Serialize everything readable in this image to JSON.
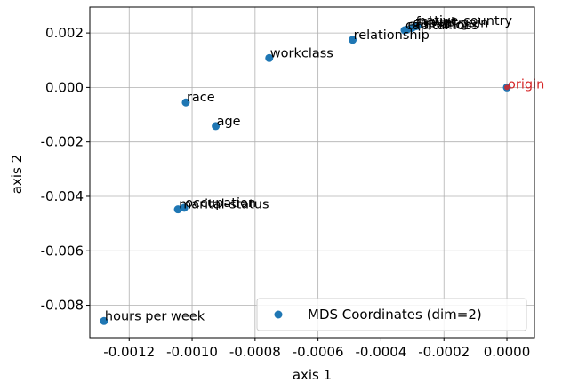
{
  "chart_data": {
    "type": "scatter",
    "xlabel": "axis 1",
    "ylabel": "axis 2",
    "xlim": [
      -0.001325,
      8.75e-05
    ],
    "ylim": [
      -0.00919,
      0.00295
    ],
    "xticks": [
      -0.0012,
      -0.001,
      -0.0008,
      -0.0006,
      -0.0004,
      -0.0002,
      0.0
    ],
    "xtick_labels": [
      "-0.0012",
      "-0.0010",
      "-0.0008",
      "-0.0006",
      "-0.0004",
      "-0.0002",
      "0.0000"
    ],
    "yticks": [
      -0.008,
      -0.006,
      -0.004,
      -0.002,
      0.0,
      0.002
    ],
    "ytick_labels": [
      "-0.008",
      "-0.006",
      "-0.004",
      "-0.002",
      "0.000",
      "0.002"
    ],
    "grid": true,
    "legend": {
      "position": "bottom-right",
      "label": "MDS Coordinates (dim=2)"
    },
    "colors": {
      "marker": "#1f77b4",
      "origin": "#d62728",
      "grid": "#b0b0b0"
    },
    "points": [
      {
        "label": "native-country",
        "x": -0.000285,
        "y": 0.00226
      },
      {
        "label": "capital-gain",
        "x": -0.000302,
        "y": 0.00218
      },
      {
        "label": "fnlwgt",
        "x": -0.000292,
        "y": 0.00224
      },
      {
        "label": "education",
        "x": -0.000318,
        "y": 0.00212
      },
      {
        "label": "capital-loss",
        "x": -0.000325,
        "y": 0.0021
      },
      {
        "label": "relationship",
        "x": -0.00049,
        "y": 0.00175
      },
      {
        "label": "workclass",
        "x": -0.000755,
        "y": 0.00108
      },
      {
        "label": "race",
        "x": -0.00102,
        "y": -0.00055
      },
      {
        "label": "age",
        "x": -0.000925,
        "y": -0.00142
      },
      {
        "label": "occupation",
        "x": -0.001025,
        "y": -0.00442
      },
      {
        "label": "marital-status",
        "x": -0.001045,
        "y": -0.00448
      },
      {
        "label": "hours per week",
        "x": -0.00128,
        "y": -0.00858
      }
    ],
    "origin": {
      "label": "origin",
      "x": 0.0,
      "y": 0.0
    }
  }
}
